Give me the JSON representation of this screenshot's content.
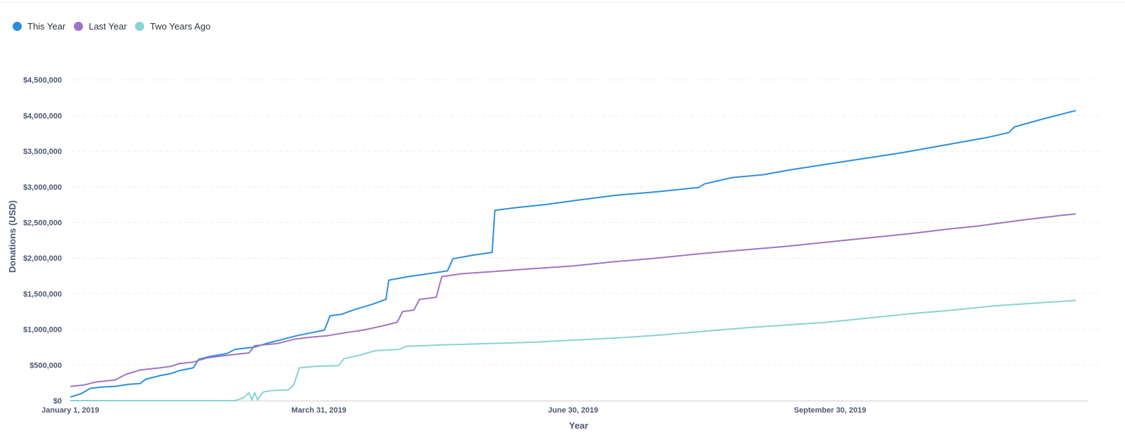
{
  "legend": {
    "items": [
      {
        "label": "This Year",
        "color": "#2d8fdc"
      },
      {
        "label": "Last Year",
        "color": "#a074c4"
      },
      {
        "label": "Two Years Ago",
        "color": "#88d3d3"
      }
    ]
  },
  "chart_data": {
    "type": "line",
    "title": "",
    "xlabel": "Year",
    "ylabel": "Donations (USD)",
    "x_domain": [
      "2019-01-01",
      "2019-12-31"
    ],
    "x_ticks": [
      {
        "date": "2019-01-01",
        "label": "January 1, 2019"
      },
      {
        "date": "2019-03-31",
        "label": "March 31, 2019"
      },
      {
        "date": "2019-06-30",
        "label": "June 30, 2019"
      },
      {
        "date": "2019-09-30",
        "label": "September 30, 2019"
      }
    ],
    "ylim": [
      0,
      5000000
    ],
    "y_ticks": [
      {
        "value": 0,
        "label": "$0"
      },
      {
        "value": 500000,
        "label": "$500,000"
      },
      {
        "value": 1000000,
        "label": "$1,000,000"
      },
      {
        "value": 1500000,
        "label": "$1,500,000"
      },
      {
        "value": 2000000,
        "label": "$2,000,000"
      },
      {
        "value": 2500000,
        "label": "$2,500,000"
      },
      {
        "value": 3000000,
        "label": "$3,000,000"
      },
      {
        "value": 3500000,
        "label": "$3,500,000"
      },
      {
        "value": 4000000,
        "label": "$4,000,000"
      },
      {
        "value": 4500000,
        "label": "$4,500,000"
      }
    ],
    "grid": true,
    "legend_position": "top-left",
    "series": [
      {
        "name": "This Year",
        "color": "#2d8fdc",
        "points": [
          [
            "2019-01-01",
            50000
          ],
          [
            "2019-01-05",
            100000
          ],
          [
            "2019-01-08",
            170000
          ],
          [
            "2019-01-12",
            190000
          ],
          [
            "2019-01-17",
            200000
          ],
          [
            "2019-01-22",
            230000
          ],
          [
            "2019-01-26",
            240000
          ],
          [
            "2019-01-28",
            300000
          ],
          [
            "2019-02-02",
            350000
          ],
          [
            "2019-02-06",
            380000
          ],
          [
            "2019-02-09",
            420000
          ],
          [
            "2019-02-14",
            460000
          ],
          [
            "2019-02-16",
            580000
          ],
          [
            "2019-02-20",
            620000
          ],
          [
            "2019-02-26",
            660000
          ],
          [
            "2019-03-01",
            720000
          ],
          [
            "2019-03-08",
            750000
          ],
          [
            "2019-03-12",
            800000
          ],
          [
            "2019-03-19",
            870000
          ],
          [
            "2019-03-23",
            910000
          ],
          [
            "2019-03-28",
            950000
          ],
          [
            "2019-04-02",
            990000
          ],
          [
            "2019-04-04",
            1190000
          ],
          [
            "2019-04-08",
            1210000
          ],
          [
            "2019-04-13",
            1280000
          ],
          [
            "2019-04-19",
            1350000
          ],
          [
            "2019-04-24",
            1420000
          ],
          [
            "2019-04-25",
            1690000
          ],
          [
            "2019-05-02",
            1740000
          ],
          [
            "2019-05-09",
            1780000
          ],
          [
            "2019-05-16",
            1820000
          ],
          [
            "2019-05-18",
            1990000
          ],
          [
            "2019-05-25",
            2040000
          ],
          [
            "2019-06-01",
            2080000
          ],
          [
            "2019-06-02",
            2670000
          ],
          [
            "2019-06-10",
            2710000
          ],
          [
            "2019-06-20",
            2750000
          ],
          [
            "2019-07-01",
            2810000
          ],
          [
            "2019-07-15",
            2880000
          ],
          [
            "2019-07-30",
            2930000
          ],
          [
            "2019-08-14",
            2990000
          ],
          [
            "2019-08-16",
            3040000
          ],
          [
            "2019-08-26",
            3130000
          ],
          [
            "2019-09-06",
            3170000
          ],
          [
            "2019-09-16",
            3240000
          ],
          [
            "2019-09-26",
            3300000
          ],
          [
            "2019-10-06",
            3360000
          ],
          [
            "2019-10-16",
            3420000
          ],
          [
            "2019-10-26",
            3480000
          ],
          [
            "2019-11-05",
            3550000
          ],
          [
            "2019-11-15",
            3620000
          ],
          [
            "2019-11-25",
            3690000
          ],
          [
            "2019-12-03",
            3760000
          ],
          [
            "2019-12-05",
            3840000
          ],
          [
            "2019-12-15",
            3950000
          ],
          [
            "2019-12-25",
            4050000
          ],
          [
            "2019-12-27",
            4070000
          ]
        ]
      },
      {
        "name": "Last Year",
        "color": "#a074c4",
        "points": [
          [
            "2019-01-01",
            200000
          ],
          [
            "2019-01-06",
            220000
          ],
          [
            "2019-01-10",
            260000
          ],
          [
            "2019-01-17",
            290000
          ],
          [
            "2019-01-21",
            370000
          ],
          [
            "2019-01-26",
            430000
          ],
          [
            "2019-02-02",
            460000
          ],
          [
            "2019-02-06",
            480000
          ],
          [
            "2019-02-09",
            520000
          ],
          [
            "2019-02-14",
            540000
          ],
          [
            "2019-02-19",
            600000
          ],
          [
            "2019-02-27",
            640000
          ],
          [
            "2019-03-06",
            670000
          ],
          [
            "2019-03-08",
            770000
          ],
          [
            "2019-03-16",
            800000
          ],
          [
            "2019-03-22",
            860000
          ],
          [
            "2019-03-28",
            890000
          ],
          [
            "2019-04-03",
            910000
          ],
          [
            "2019-04-09",
            950000
          ],
          [
            "2019-04-16",
            990000
          ],
          [
            "2019-04-23",
            1050000
          ],
          [
            "2019-04-28",
            1100000
          ],
          [
            "2019-04-30",
            1250000
          ],
          [
            "2019-05-04",
            1270000
          ],
          [
            "2019-05-06",
            1420000
          ],
          [
            "2019-05-12",
            1450000
          ],
          [
            "2019-05-14",
            1740000
          ],
          [
            "2019-05-21",
            1780000
          ],
          [
            "2019-06-01",
            1810000
          ],
          [
            "2019-06-15",
            1850000
          ],
          [
            "2019-06-30",
            1890000
          ],
          [
            "2019-07-15",
            1950000
          ],
          [
            "2019-07-30",
            2000000
          ],
          [
            "2019-08-14",
            2060000
          ],
          [
            "2019-08-29",
            2110000
          ],
          [
            "2019-09-13",
            2160000
          ],
          [
            "2019-09-28",
            2220000
          ],
          [
            "2019-10-13",
            2280000
          ],
          [
            "2019-10-28",
            2340000
          ],
          [
            "2019-11-12",
            2410000
          ],
          [
            "2019-11-22",
            2450000
          ],
          [
            "2019-12-07",
            2530000
          ],
          [
            "2019-12-22",
            2600000
          ],
          [
            "2019-12-27",
            2620000
          ]
        ]
      },
      {
        "name": "Two Years Ago",
        "color": "#88d3d3",
        "points": [
          [
            "2019-01-01",
            0
          ],
          [
            "2019-03-01",
            0
          ],
          [
            "2019-03-04",
            40000
          ],
          [
            "2019-03-06",
            110000
          ],
          [
            "2019-03-07",
            10000
          ],
          [
            "2019-03-08",
            110000
          ],
          [
            "2019-03-09",
            10000
          ],
          [
            "2019-03-11",
            120000
          ],
          [
            "2019-03-14",
            140000
          ],
          [
            "2019-03-20",
            150000
          ],
          [
            "2019-03-22",
            220000
          ],
          [
            "2019-03-24",
            460000
          ],
          [
            "2019-03-30",
            480000
          ],
          [
            "2019-04-07",
            490000
          ],
          [
            "2019-04-09",
            590000
          ],
          [
            "2019-04-15",
            640000
          ],
          [
            "2019-04-20",
            700000
          ],
          [
            "2019-04-29",
            720000
          ],
          [
            "2019-05-01",
            760000
          ],
          [
            "2019-05-13",
            780000
          ],
          [
            "2019-05-30",
            800000
          ],
          [
            "2019-06-16",
            820000
          ],
          [
            "2019-07-01",
            850000
          ],
          [
            "2019-07-16",
            880000
          ],
          [
            "2019-07-31",
            920000
          ],
          [
            "2019-08-15",
            970000
          ],
          [
            "2019-08-30",
            1020000
          ],
          [
            "2019-09-14",
            1060000
          ],
          [
            "2019-09-29",
            1100000
          ],
          [
            "2019-10-14",
            1160000
          ],
          [
            "2019-10-29",
            1220000
          ],
          [
            "2019-11-13",
            1270000
          ],
          [
            "2019-11-28",
            1330000
          ],
          [
            "2019-12-13",
            1370000
          ],
          [
            "2019-12-25",
            1400000
          ],
          [
            "2019-12-27",
            1410000
          ]
        ]
      }
    ]
  }
}
